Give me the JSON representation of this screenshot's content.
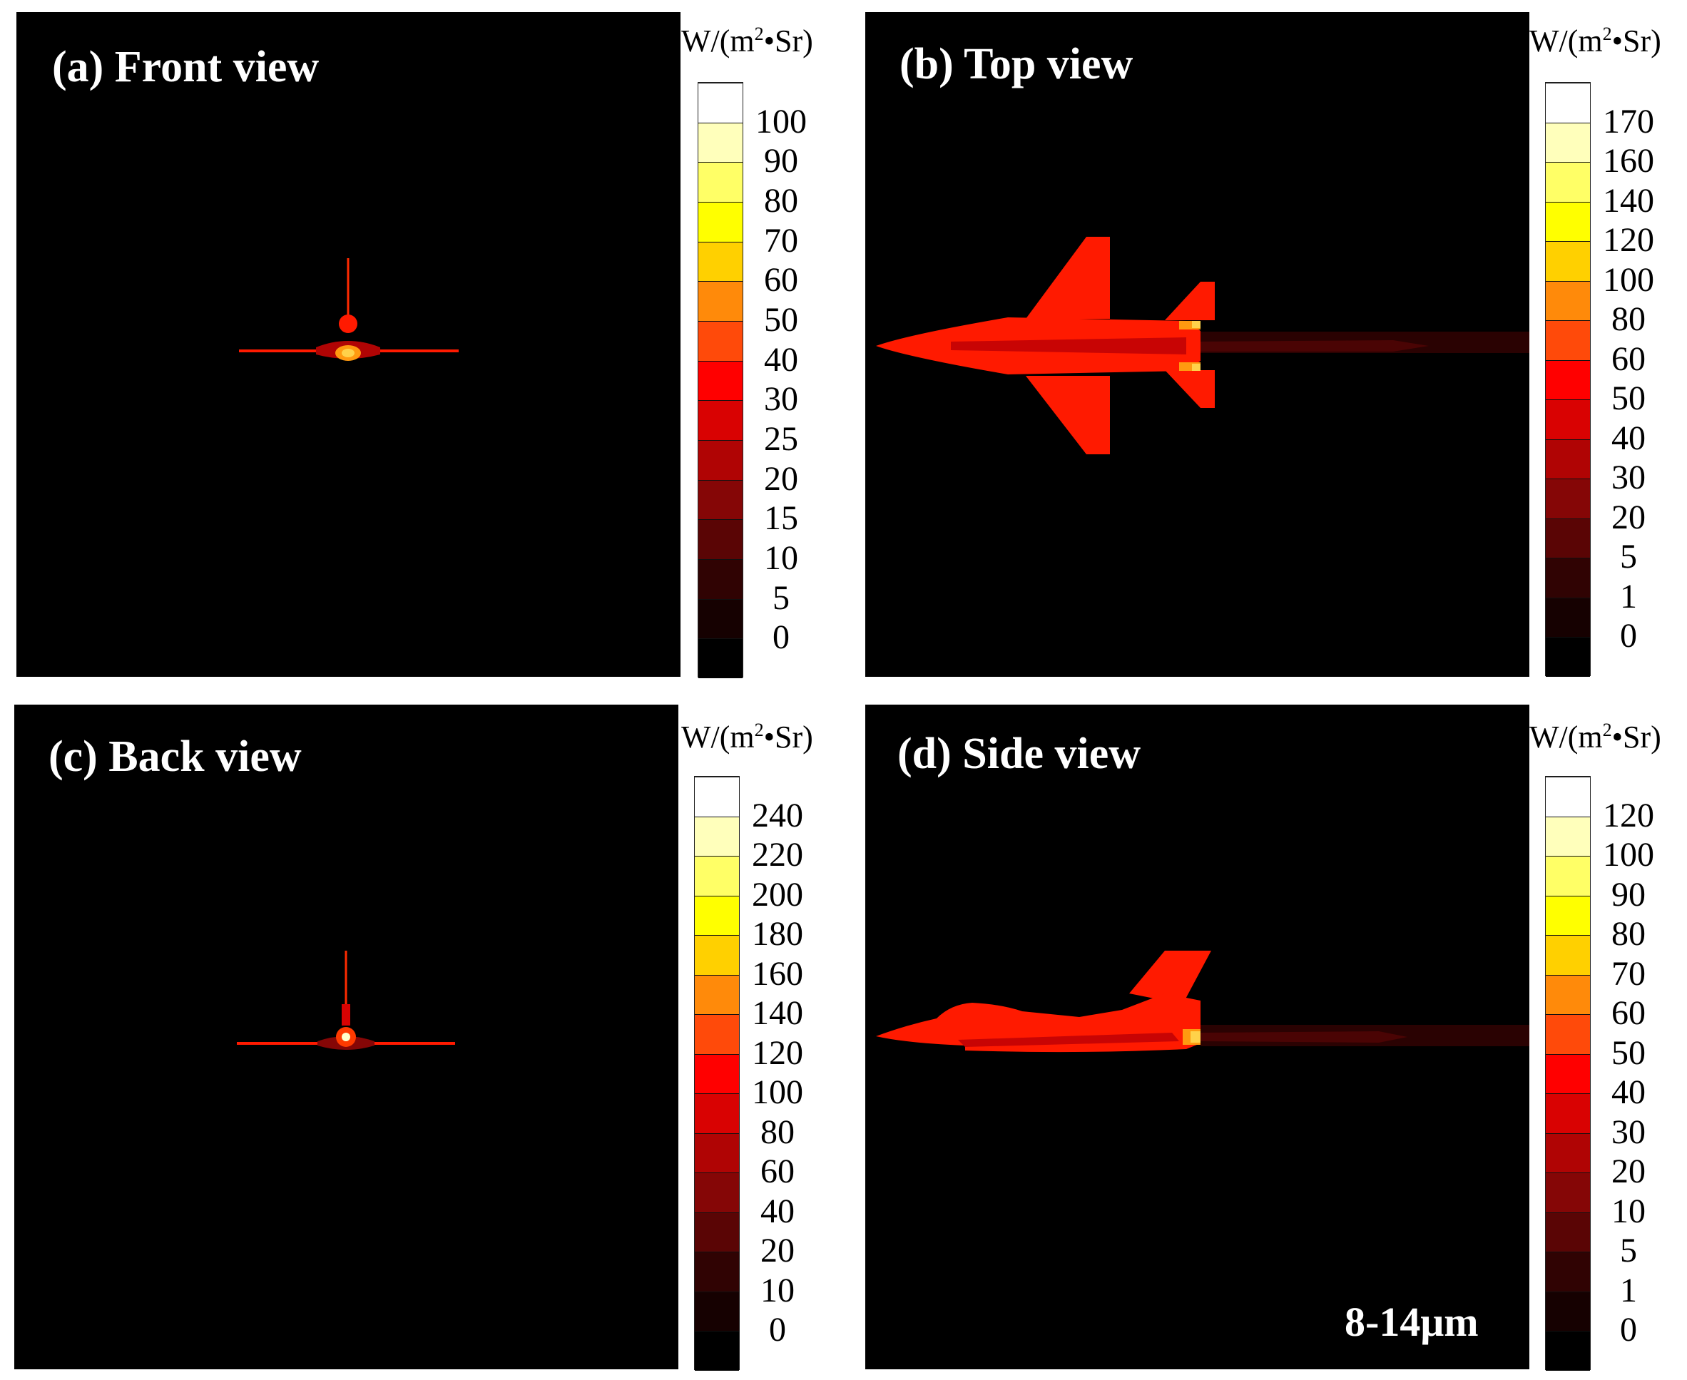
{
  "colors": {
    "background": "#000000",
    "scale": [
      "#000000",
      "#160101",
      "#300303",
      "#5a0505",
      "#850606",
      "#b00404",
      "#d90202",
      "#ff0000",
      "#ff4a0a",
      "#ff8a0a",
      "#ffd000",
      "#ffff00",
      "#ffff66",
      "#ffffbb",
      "#ffffff"
    ]
  },
  "panels": [
    {
      "id": "a",
      "title": "(a) Front view",
      "unit_main": "W/(m",
      "unit_sup": "2",
      "unit_tail": "•Sr)",
      "ticks": [
        "100",
        "90",
        "80",
        "70",
        "60",
        "50",
        "40",
        "30",
        "25",
        "20",
        "15",
        "10",
        "5",
        "0"
      ],
      "view": "front"
    },
    {
      "id": "b",
      "title": "(b) Top view",
      "unit_main": "W/(m",
      "unit_sup": "2",
      "unit_tail": "•Sr)",
      "ticks": [
        "170",
        "160",
        "140",
        "120",
        "100",
        "80",
        "60",
        "50",
        "40",
        "30",
        "20",
        "5",
        "1",
        "0"
      ],
      "view": "top"
    },
    {
      "id": "c",
      "title": "(c) Back view",
      "unit_main": "W/(m",
      "unit_sup": "2",
      "unit_tail": "•Sr)",
      "ticks": [
        "240",
        "220",
        "200",
        "180",
        "160",
        "140",
        "120",
        "100",
        "80",
        "60",
        "40",
        "20",
        "10",
        "0"
      ],
      "view": "back"
    },
    {
      "id": "d",
      "title": "(d) Side view",
      "unit_main": "W/(m",
      "unit_sup": "2",
      "unit_tail": "•Sr)",
      "ticks": [
        "120",
        "100",
        "90",
        "80",
        "70",
        "60",
        "50",
        "40",
        "30",
        "20",
        "10",
        "5",
        "1",
        "0"
      ],
      "view": "side",
      "band_label": "8-14μm"
    }
  ]
}
